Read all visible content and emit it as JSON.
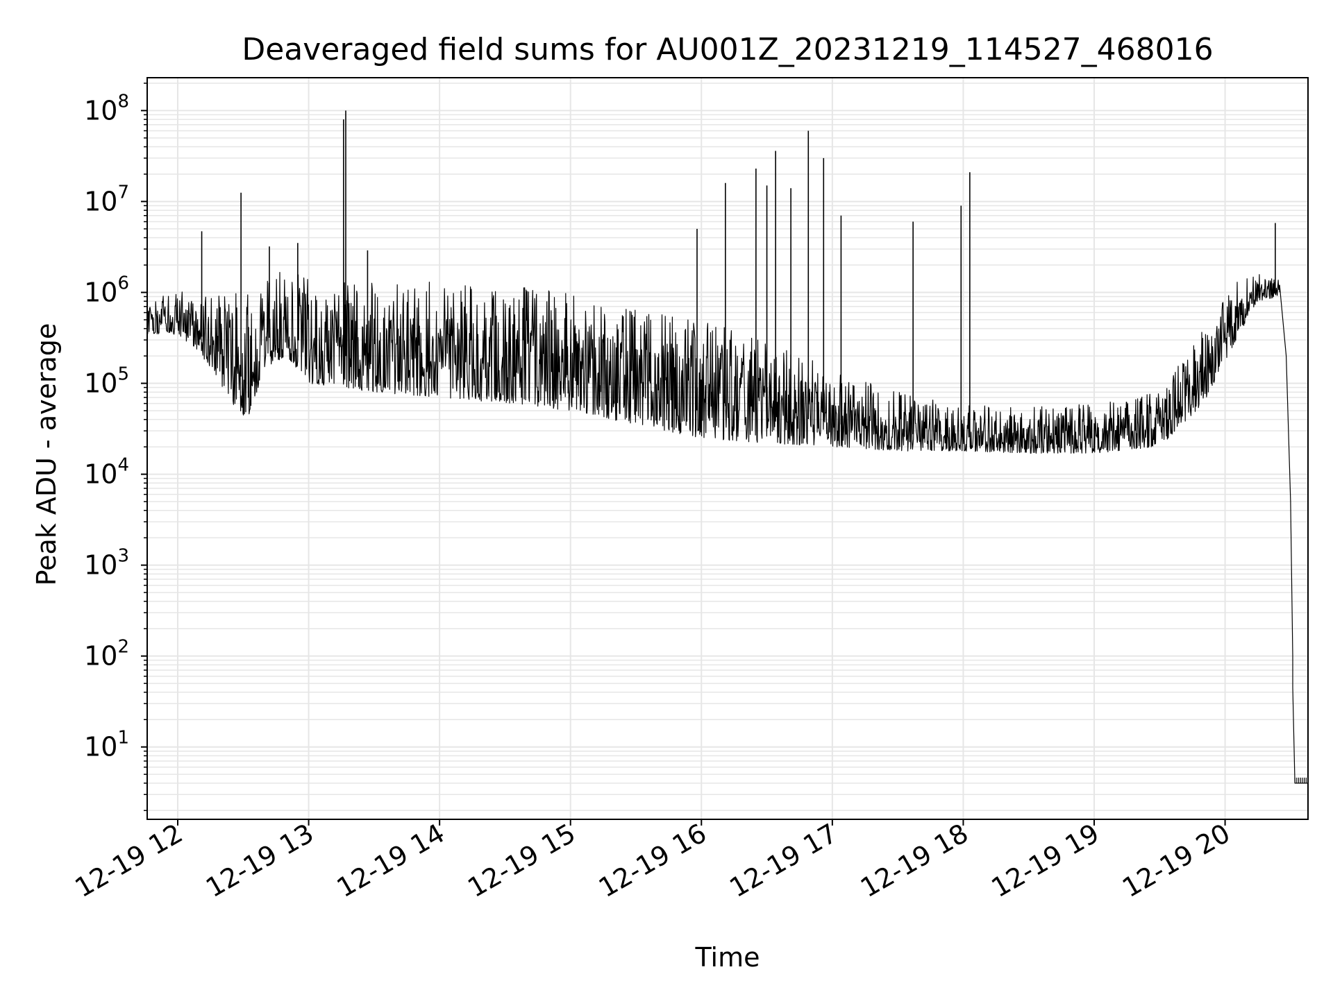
{
  "chart_data": {
    "type": "line",
    "title": "Deaveraged field sums for AU001Z_20231219_114527_468016",
    "xlabel": "Time",
    "ylabel": "Peak ADU - average",
    "y_scale": "log",
    "ylim": [
      1.6,
      230000000.0
    ],
    "xlim": [
      "2023-12-19T11:46",
      "2023-12-19T20:38"
    ],
    "x_ticks": [
      {
        "t": "2023-12-19T12:00",
        "label": "12-19 12"
      },
      {
        "t": "2023-12-19T13:00",
        "label": "12-19 13"
      },
      {
        "t": "2023-12-19T14:00",
        "label": "12-19 14"
      },
      {
        "t": "2023-12-19T15:00",
        "label": "12-19 15"
      },
      {
        "t": "2023-12-19T16:00",
        "label": "12-19 16"
      },
      {
        "t": "2023-12-19T17:00",
        "label": "12-19 17"
      },
      {
        "t": "2023-12-19T18:00",
        "label": "12-19 18"
      },
      {
        "t": "2023-12-19T19:00",
        "label": "12-19 19"
      },
      {
        "t": "2023-12-19T20:00",
        "label": "12-19 20"
      }
    ],
    "y_ticks": [
      {
        "v": 10,
        "base": "10",
        "exp": "1"
      },
      {
        "v": 100,
        "base": "10",
        "exp": "2"
      },
      {
        "v": 1000,
        "base": "10",
        "exp": "3"
      },
      {
        "v": 10000,
        "base": "10",
        "exp": "4"
      },
      {
        "v": 100000,
        "base": "10",
        "exp": "5"
      },
      {
        "v": 1000000,
        "base": "10",
        "exp": "6"
      },
      {
        "v": 10000000,
        "base": "10",
        "exp": "7"
      },
      {
        "v": 100000000,
        "base": "10",
        "exp": "8"
      }
    ],
    "grid": true,
    "line_color": "#000000",
    "grid_color": "#e6e6e6",
    "envelope": [
      {
        "t": "2023-12-19T11:46",
        "lo": 350000,
        "hi": 700000
      },
      {
        "t": "2023-12-19T11:58",
        "lo": 350000,
        "hi": 1100000
      },
      {
        "t": "2023-12-19T12:08",
        "lo": 250000,
        "hi": 1000000
      },
      {
        "t": "2023-12-19T12:15",
        "lo": 150000,
        "hi": 1000000
      },
      {
        "t": "2023-12-19T12:25",
        "lo": 60000,
        "hi": 1000000
      },
      {
        "t": "2023-12-19T12:32",
        "lo": 40000,
        "hi": 1000000
      },
      {
        "t": "2023-12-19T12:40",
        "lo": 150000,
        "hi": 1500000
      },
      {
        "t": "2023-12-19T12:50",
        "lo": 200000,
        "hi": 2000000
      },
      {
        "t": "2023-12-19T13:00",
        "lo": 100000,
        "hi": 1400000
      },
      {
        "t": "2023-12-19T13:30",
        "lo": 80000,
        "hi": 1300000
      },
      {
        "t": "2023-12-19T14:00",
        "lo": 70000,
        "hi": 1300000
      },
      {
        "t": "2023-12-19T14:30",
        "lo": 60000,
        "hi": 1200000
      },
      {
        "t": "2023-12-19T15:00",
        "lo": 50000,
        "hi": 1000000
      },
      {
        "t": "2023-12-19T15:30",
        "lo": 35000,
        "hi": 700000
      },
      {
        "t": "2023-12-19T16:00",
        "lo": 25000,
        "hi": 500000
      },
      {
        "t": "2023-12-19T16:30",
        "lo": 22000,
        "hi": 300000
      },
      {
        "t": "2023-12-19T17:00",
        "lo": 20000,
        "hi": 150000
      },
      {
        "t": "2023-12-19T17:30",
        "lo": 18000,
        "hi": 80000
      },
      {
        "t": "2023-12-19T18:00",
        "lo": 18000,
        "hi": 60000
      },
      {
        "t": "2023-12-19T18:30",
        "lo": 17000,
        "hi": 55000
      },
      {
        "t": "2023-12-19T19:00",
        "lo": 17000,
        "hi": 60000
      },
      {
        "t": "2023-12-19T19:30",
        "lo": 20000,
        "hi": 80000
      },
      {
        "t": "2023-12-19T19:50",
        "lo": 60000,
        "hi": 400000
      },
      {
        "t": "2023-12-19T20:05",
        "lo": 300000,
        "hi": 1300000
      },
      {
        "t": "2023-12-19T20:15",
        "lo": 800000,
        "hi": 1600000
      },
      {
        "t": "2023-12-19T20:25",
        "lo": 900000,
        "hi": 1500000
      }
    ],
    "tail": [
      {
        "t": "2023-12-19T20:25",
        "v": 1200000
      },
      {
        "t": "2023-12-19T20:28",
        "v": 200000
      },
      {
        "t": "2023-12-19T20:30",
        "v": 5000
      },
      {
        "t": "2023-12-19T20:31",
        "v": 100
      },
      {
        "t": "2023-12-19T20:31",
        "v": 45
      },
      {
        "t": "2023-12-19T20:32",
        "v": 4
      },
      {
        "t": "2023-12-19T20:38",
        "v": 4
      }
    ],
    "spikes": [
      {
        "t": "2023-12-19T12:11",
        "v": 4700000
      },
      {
        "t": "2023-12-19T12:29",
        "v": 12500000
      },
      {
        "t": "2023-12-19T12:42",
        "v": 3200000
      },
      {
        "t": "2023-12-19T12:55",
        "v": 3500000
      },
      {
        "t": "2023-12-19T13:16",
        "v": 80000000
      },
      {
        "t": "2023-12-19T13:17",
        "v": 100000000
      },
      {
        "t": "2023-12-19T13:27",
        "v": 2900000
      },
      {
        "t": "2023-12-19T15:58",
        "v": 5000000
      },
      {
        "t": "2023-12-19T16:11",
        "v": 16000000
      },
      {
        "t": "2023-12-19T16:25",
        "v": 23000000
      },
      {
        "t": "2023-12-19T16:30",
        "v": 15000000
      },
      {
        "t": "2023-12-19T16:34",
        "v": 36000000
      },
      {
        "t": "2023-12-19T16:41",
        "v": 14000000
      },
      {
        "t": "2023-12-19T16:49",
        "v": 60000000
      },
      {
        "t": "2023-12-19T16:56",
        "v": 30000000
      },
      {
        "t": "2023-12-19T17:04",
        "v": 7000000
      },
      {
        "t": "2023-12-19T17:37",
        "v": 6000000
      },
      {
        "t": "2023-12-19T17:59",
        "v": 9000000
      },
      {
        "t": "2023-12-19T18:03",
        "v": 21000000
      },
      {
        "t": "2023-12-19T20:23",
        "v": 5800000
      }
    ]
  }
}
